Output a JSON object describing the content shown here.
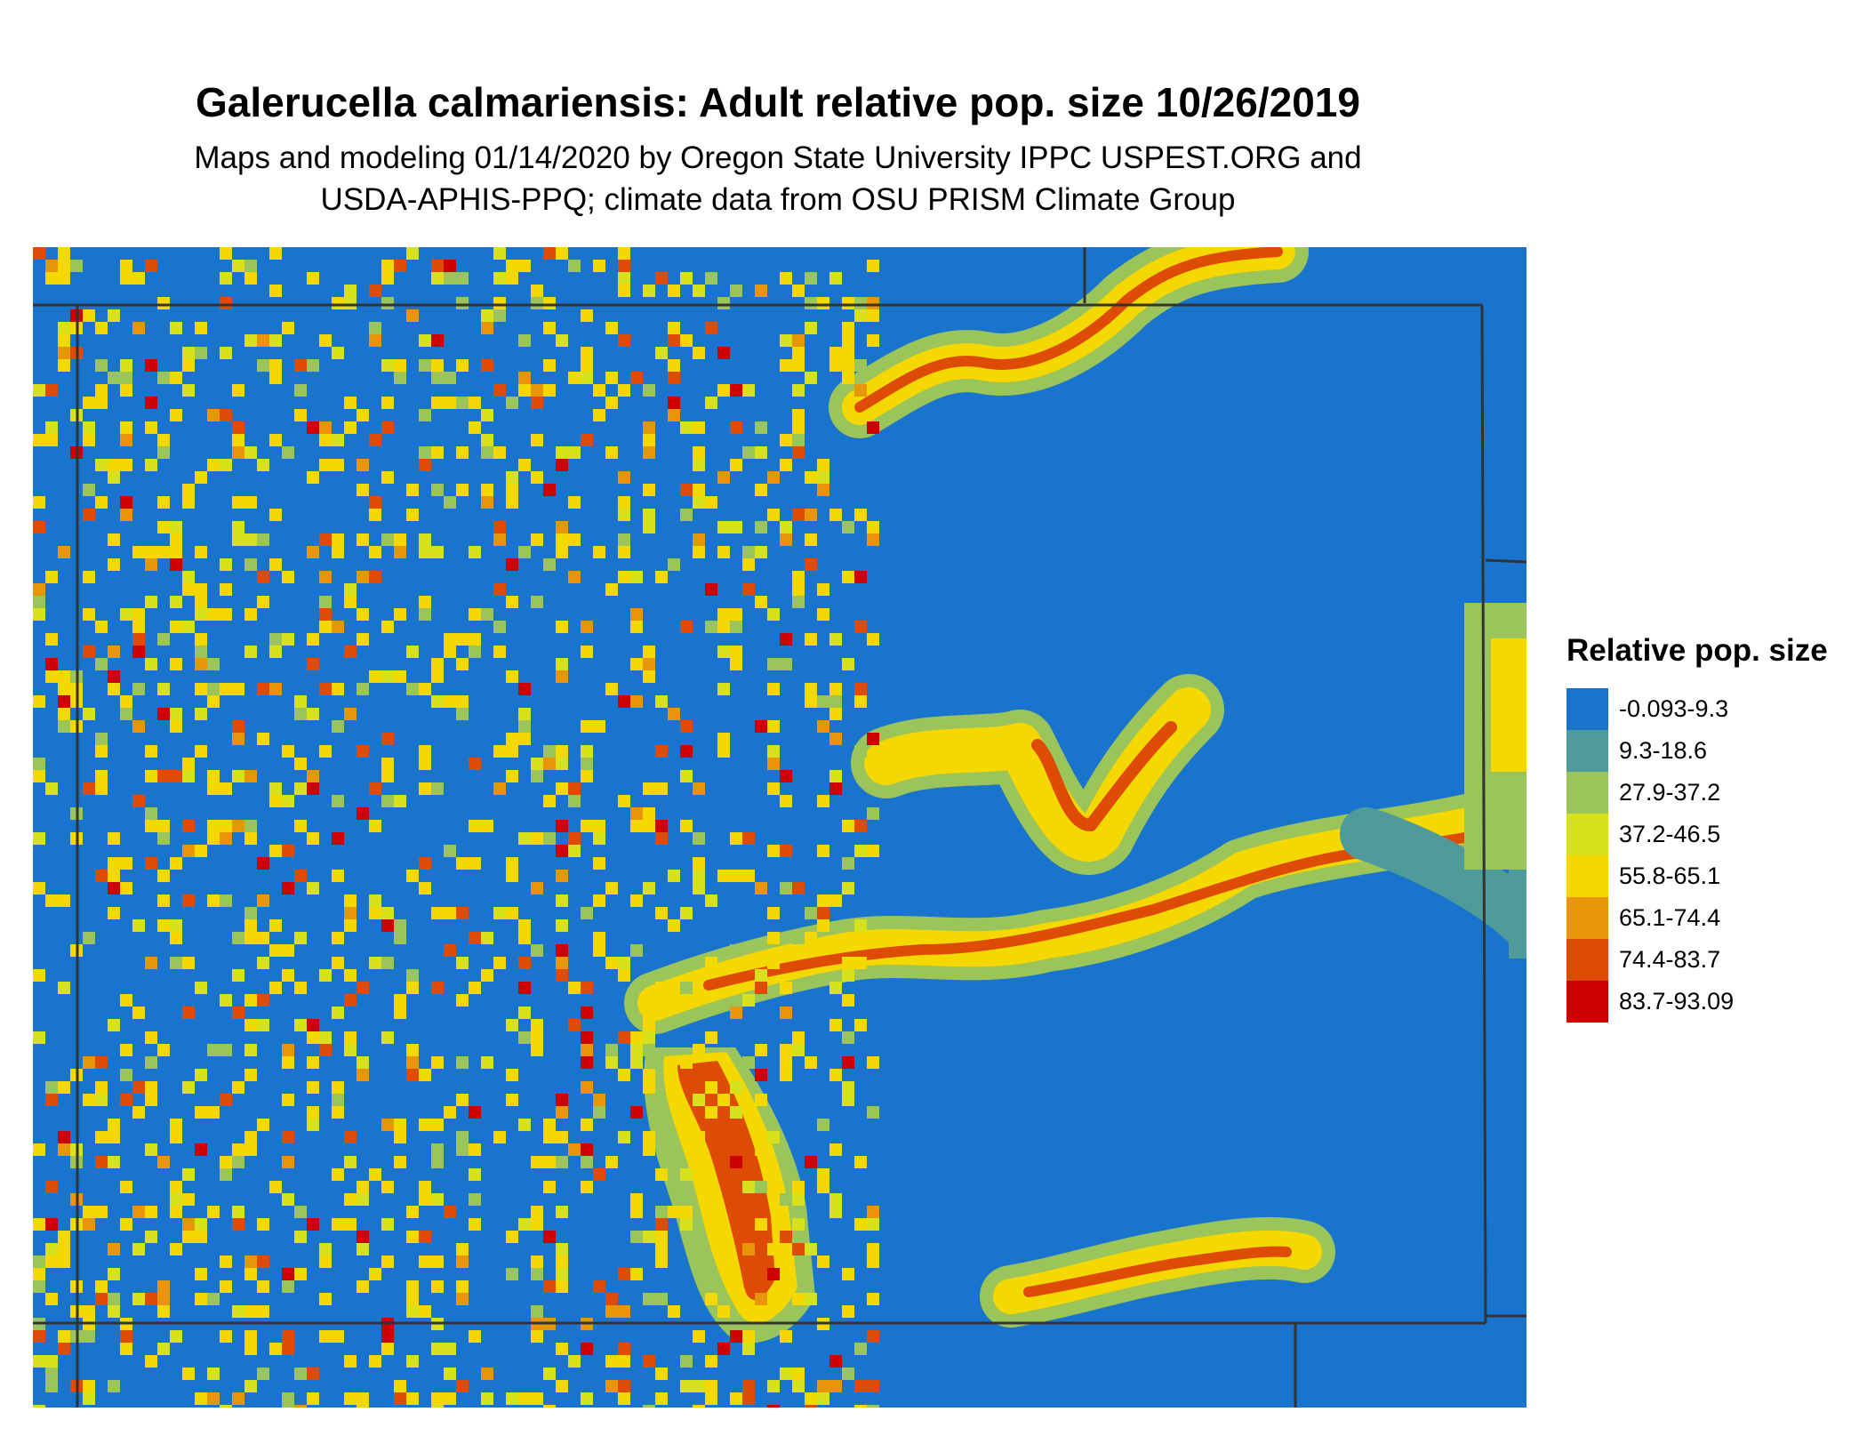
{
  "title": "Galerucella calmariensis: Adult relative pop. size 10/26/2019",
  "subtitle_line1": "Maps and modeling 01/14/2020 by Oregon State University IPPC USPEST.ORG and",
  "subtitle_line2": "USDA-APHIS-PPQ; climate data from OSU PRISM Climate Group",
  "legend": {
    "title": "Relative pop. size",
    "classes": [
      {
        "label": "-0.093-9.3",
        "color": "#1874cd"
      },
      {
        "label": "9.3-18.6",
        "color": "#4f9a9a"
      },
      {
        "label": "27.9-37.2",
        "color": "#9bc45a"
      },
      {
        "label": "37.2-46.5",
        "color": "#d7e21c"
      },
      {
        "label": "55.8-65.1",
        "color": "#f5d800"
      },
      {
        "label": "65.1-74.4",
        "color": "#e8950a"
      },
      {
        "label": "74.4-83.7",
        "color": "#dd4b05"
      },
      {
        "label": "83.7-93.09",
        "color": "#cc0000"
      }
    ]
  }
}
